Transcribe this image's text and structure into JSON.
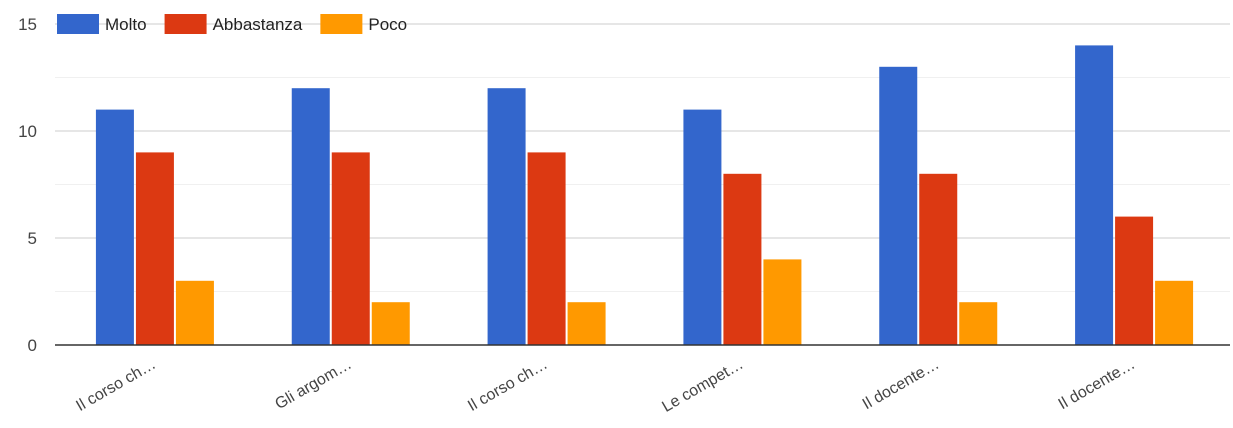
{
  "chart_data": {
    "type": "bar",
    "categories": [
      "Il corso ch…",
      "Gli argom…",
      "Il corso ch…",
      "Le compet…",
      "Il docente…",
      "Il docente…"
    ],
    "series": [
      {
        "name": "Molto",
        "color": "#3366cc",
        "values": [
          11,
          12,
          12,
          11,
          13,
          14
        ]
      },
      {
        "name": "Abbastanza",
        "color": "#dc3912",
        "values": [
          9,
          9,
          9,
          8,
          8,
          6
        ]
      },
      {
        "name": "Poco",
        "color": "#ff9900",
        "values": [
          3,
          2,
          2,
          4,
          2,
          3
        ]
      }
    ],
    "ylim": [
      0,
      15
    ],
    "yticks": [
      0,
      5,
      10,
      15
    ],
    "minor_gridlines": [
      2.5,
      7.5,
      12.5
    ],
    "grid": true,
    "legend_position": "top",
    "title": "",
    "xlabel": "",
    "ylabel": ""
  }
}
